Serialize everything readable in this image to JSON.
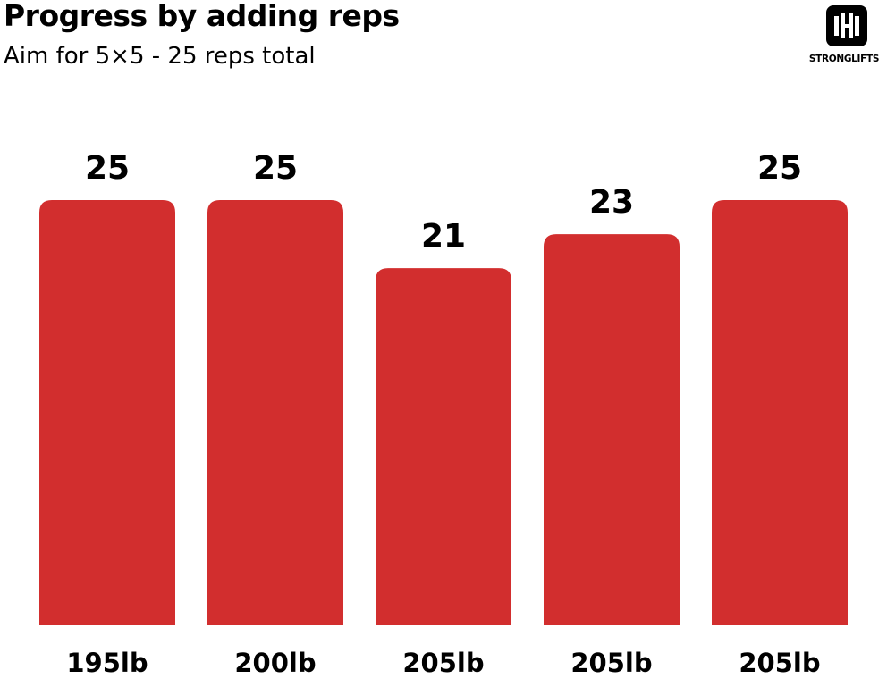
{
  "title": "Progress by adding reps",
  "subtitle": "Aim for 5×5 - 25 reps total",
  "logo": {
    "text": "STRONGLIFTS",
    "icon": "barbell-icon"
  },
  "colors": {
    "bar": "#d22e2e",
    "text": "#000000",
    "logo": "#000000"
  },
  "chart_data": {
    "type": "bar",
    "title": "Progress by adding reps",
    "subtitle": "Aim for 5×5 - 25 reps total",
    "categories": [
      "195lb",
      "200lb",
      "205lb",
      "205lb",
      "205lb"
    ],
    "values": [
      25,
      25,
      21,
      23,
      25
    ],
    "data_labels": true,
    "xlabel": "",
    "ylabel": "",
    "ylim": [
      0,
      25
    ],
    "grid": false,
    "legend": "none"
  }
}
